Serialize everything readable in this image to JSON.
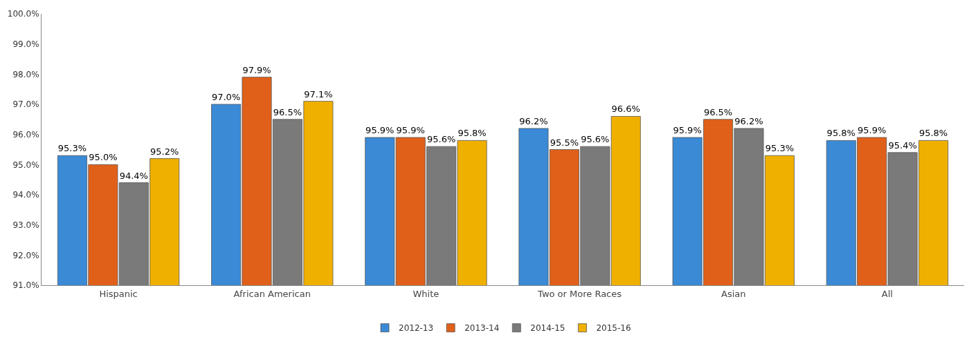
{
  "chart_data": {
    "type": "bar",
    "categories": [
      "Hispanic",
      "African American",
      "White",
      "Two or More Races",
      "Asian",
      "All"
    ],
    "series": [
      {
        "name": "2012-13",
        "color": "#3a8ad6",
        "values": [
          95.3,
          97.0,
          95.9,
          96.2,
          95.9,
          95.8
        ],
        "value_labels": [
          "95.3%",
          "97.0%",
          "95.9%",
          "96.2%",
          "95.9%",
          "95.8%"
        ]
      },
      {
        "name": "2013-14",
        "color": "#e0601a",
        "values": [
          95.0,
          97.9,
          95.9,
          95.5,
          96.5,
          95.9
        ],
        "value_labels": [
          "95.0%",
          "97.9%",
          "95.9%",
          "95.5%",
          "96.5%",
          "95.9%"
        ]
      },
      {
        "name": "2014-15",
        "color": "#7a7a7a",
        "values": [
          94.4,
          96.5,
          95.6,
          95.6,
          96.2,
          95.4
        ],
        "value_labels": [
          "94.4%",
          "96.5%",
          "95.6%",
          "95.6%",
          "96.2%",
          "95.4%"
        ]
      },
      {
        "name": "2015-16",
        "color": "#f0b000",
        "values": [
          95.2,
          97.1,
          95.8,
          96.6,
          95.3,
          95.8
        ],
        "value_labels": [
          "95.2%",
          "97.1%",
          "95.8%",
          "96.6%",
          "95.3%",
          "95.8%"
        ]
      }
    ],
    "ylim": [
      91,
      100
    ],
    "yticks": [
      {
        "value": 91,
        "label": "91.0%"
      },
      {
        "value": 92,
        "label": "92.0%"
      },
      {
        "value": 93,
        "label": "93.0%"
      },
      {
        "value": 94,
        "label": "94.0%"
      },
      {
        "value": 95,
        "label": "95.0%"
      },
      {
        "value": 96,
        "label": "96.0%"
      },
      {
        "value": 97,
        "label": "97.0%"
      },
      {
        "value": 98,
        "label": "98.0%"
      },
      {
        "value": 99,
        "label": "99.0%"
      },
      {
        "value": 100,
        "label": "100.0%"
      }
    ],
    "legend": "bottom"
  }
}
